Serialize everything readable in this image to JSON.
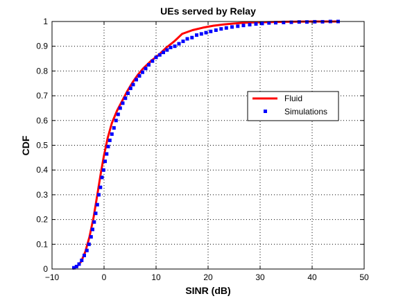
{
  "chart_data": {
    "type": "line",
    "title": "UEs served by Relay",
    "xlabel": "SINR (dB)",
    "ylabel": "CDF",
    "xlim": [
      -10,
      50
    ],
    "ylim": [
      0,
      1
    ],
    "xticks": [
      -10,
      0,
      10,
      20,
      30,
      40,
      50
    ],
    "yticks": [
      0,
      0.1,
      0.2,
      0.3,
      0.4,
      0.5,
      0.6,
      0.7,
      0.8,
      0.9,
      1
    ],
    "xtick_labels": [
      "−10",
      "0",
      "10",
      "20",
      "30",
      "40",
      "50"
    ],
    "ytick_labels": [
      "0",
      "0.1",
      "0.2",
      "0.3",
      "0.4",
      "0.5",
      "0.6",
      "0.7",
      "0.8",
      "0.9",
      "1"
    ],
    "grid": true,
    "legend_position": "right",
    "series": [
      {
        "name": "Fluid",
        "style": "line",
        "color": "#ff0000",
        "x": [
          -6,
          -5.2,
          -4.4,
          -3.6,
          -2.8,
          -2.0,
          -1.3,
          -0.6,
          0,
          0.7,
          1.5,
          2.5,
          3.5,
          4.5,
          5.5,
          6.5,
          7.5,
          9,
          10.5,
          12,
          13.5,
          15,
          17,
          19,
          21,
          23,
          25,
          27,
          30,
          35,
          40,
          45
        ],
        "y": [
          0.0,
          0.01,
          0.03,
          0.07,
          0.13,
          0.21,
          0.3,
          0.39,
          0.46,
          0.53,
          0.59,
          0.64,
          0.68,
          0.72,
          0.755,
          0.785,
          0.81,
          0.84,
          0.865,
          0.895,
          0.92,
          0.95,
          0.965,
          0.975,
          0.983,
          0.988,
          0.992,
          0.995,
          0.997,
          0.999,
          1.0,
          1.0
        ]
      },
      {
        "name": "Simulations",
        "style": "markers",
        "color": "#0000ff",
        "x": [
          -5.8,
          -5.3,
          -4.8,
          -4.3,
          -3.8,
          -3.3,
          -2.9,
          -2.5,
          -2.2,
          -1.9,
          -1.6,
          -1.3,
          -1.0,
          -0.7,
          -0.4,
          -0.1,
          0.2,
          0.5,
          0.8,
          1.1,
          1.5,
          1.9,
          2.3,
          2.7,
          3.1,
          3.6,
          4.1,
          4.6,
          5.1,
          5.6,
          6.2,
          6.8,
          7.4,
          8.0,
          8.6,
          9.3,
          10.0,
          10.7,
          11.4,
          12.1,
          12.8,
          13.6,
          14.4,
          15.2,
          16.0,
          16.9,
          17.8,
          18.7,
          19.6,
          20.5,
          21.5,
          22.5,
          23.5,
          24.6,
          25.7,
          26.8,
          28.0,
          29.2,
          30.4,
          31.7,
          33.0,
          34.5,
          36.0,
          37.5,
          39.0,
          40.5,
          42.0,
          43.5,
          45.0
        ],
        "y": [
          0.005,
          0.01,
          0.02,
          0.035,
          0.055,
          0.075,
          0.1,
          0.13,
          0.16,
          0.19,
          0.225,
          0.26,
          0.3,
          0.33,
          0.37,
          0.4,
          0.435,
          0.465,
          0.495,
          0.52,
          0.545,
          0.57,
          0.6,
          0.625,
          0.65,
          0.67,
          0.69,
          0.71,
          0.73,
          0.745,
          0.765,
          0.78,
          0.795,
          0.81,
          0.825,
          0.84,
          0.855,
          0.865,
          0.875,
          0.885,
          0.895,
          0.9,
          0.91,
          0.92,
          0.93,
          0.935,
          0.945,
          0.95,
          0.955,
          0.96,
          0.965,
          0.97,
          0.974,
          0.978,
          0.981,
          0.984,
          0.987,
          0.99,
          0.992,
          0.994,
          0.995,
          0.996,
          0.997,
          0.998,
          0.998,
          0.999,
          0.999,
          1.0,
          1.0
        ]
      }
    ]
  }
}
